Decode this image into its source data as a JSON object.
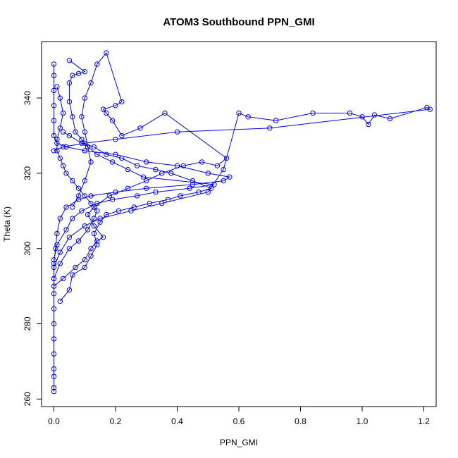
{
  "chart_data": {
    "type": "scatter",
    "title": "ATOM3 Southbound PPN_GMI",
    "xlabel": "PPN_GMI",
    "ylabel": "Theta (K)",
    "xlim": [
      -0.04,
      1.24
    ],
    "ylim": [
      258,
      355
    ],
    "x_ticks": [
      0.0,
      0.2,
      0.4,
      0.6,
      0.8,
      1.0,
      1.2
    ],
    "x_tick_labels": [
      "0.0",
      "0.2",
      "0.4",
      "0.6",
      "0.8",
      "1.0",
      "1.2"
    ],
    "y_ticks": [
      260,
      280,
      300,
      320,
      340
    ],
    "y_tick_labels": [
      "260",
      "280",
      "300",
      "320",
      "340"
    ],
    "grid": false,
    "legend": "none",
    "marker": "open-circle",
    "connected_by_lines": true,
    "series_color": "#0000ff",
    "series": [
      {
        "points": [
          [
            0.0,
            262
          ],
          [
            0.0,
            263
          ],
          [
            0.0,
            266
          ],
          [
            0.0,
            268
          ],
          [
            0.0,
            272
          ],
          [
            0.0,
            276
          ],
          [
            0.0,
            280
          ],
          [
            0.0,
            284
          ],
          [
            0.0,
            288
          ],
          [
            0.0,
            292
          ],
          [
            0.0,
            296
          ],
          [
            0.005,
            300
          ],
          [
            0.01,
            304
          ],
          [
            0.02,
            308
          ],
          [
            0.04,
            311
          ],
          [
            0.08,
            313
          ],
          [
            0.12,
            314
          ],
          [
            0.2,
            315
          ],
          [
            0.3,
            316
          ],
          [
            0.45,
            317
          ],
          [
            0.55,
            318
          ],
          [
            0.57,
            319
          ],
          [
            0.5,
            320
          ],
          [
            0.4,
            322
          ],
          [
            0.3,
            323
          ],
          [
            0.2,
            325
          ],
          [
            0.1,
            326
          ],
          [
            0.04,
            327
          ],
          [
            0.01,
            328
          ],
          [
            0.0,
            330
          ],
          [
            0.0,
            334
          ],
          [
            0.0,
            338
          ],
          [
            0.0,
            342
          ],
          [
            0.0,
            346
          ],
          [
            0.0,
            349
          ]
        ]
      },
      {
        "points": [
          [
            0.0,
            295
          ],
          [
            0.02,
            299
          ],
          [
            0.05,
            303
          ],
          [
            0.1,
            306
          ],
          [
            0.15,
            308
          ],
          [
            0.25,
            310
          ],
          [
            0.35,
            312
          ],
          [
            0.5,
            315
          ],
          [
            0.55,
            321
          ],
          [
            0.6,
            336
          ],
          [
            0.63,
            335
          ],
          [
            0.72,
            334
          ],
          [
            0.84,
            336
          ],
          [
            0.96,
            336
          ],
          [
            1.0,
            335
          ],
          [
            1.02,
            333
          ],
          [
            1.04,
            335.5
          ],
          [
            1.09,
            334.5
          ],
          [
            1.21,
            337.5
          ],
          [
            1.22,
            337
          ],
          [
            0.7,
            332
          ],
          [
            0.4,
            331
          ],
          [
            0.2,
            329
          ],
          [
            0.1,
            328
          ],
          [
            0.03,
            327
          ],
          [
            0.0,
            326
          ]
        ]
      },
      {
        "points": [
          [
            0.0,
            290
          ],
          [
            0.03,
            292
          ],
          [
            0.07,
            295
          ],
          [
            0.1,
            297
          ],
          [
            0.12,
            300
          ],
          [
            0.14,
            302
          ],
          [
            0.16,
            303
          ],
          [
            0.13,
            306
          ],
          [
            0.11,
            309
          ],
          [
            0.13,
            311
          ],
          [
            0.18,
            314
          ],
          [
            0.24,
            316
          ],
          [
            0.3,
            318
          ],
          [
            0.35,
            320
          ],
          [
            0.42,
            322
          ],
          [
            0.48,
            323
          ],
          [
            0.53,
            322
          ],
          [
            0.56,
            324
          ],
          [
            0.36,
            336
          ],
          [
            0.28,
            332
          ],
          [
            0.22,
            330
          ],
          [
            0.19,
            334
          ],
          [
            0.17,
            336
          ],
          [
            0.16,
            337
          ],
          [
            0.2,
            338
          ],
          [
            0.22,
            339
          ],
          [
            0.17,
            352
          ],
          [
            0.14,
            349
          ],
          [
            0.12,
            344
          ],
          [
            0.1,
            340
          ],
          [
            0.09,
            335
          ],
          [
            0.1,
            331
          ],
          [
            0.11,
            327
          ],
          [
            0.12,
            323
          ],
          [
            0.1,
            318
          ],
          [
            0.08,
            314
          ],
          [
            0.06,
            311
          ]
        ]
      },
      {
        "points": [
          [
            0.0,
            297
          ],
          [
            0.01,
            301
          ],
          [
            0.04,
            305
          ],
          [
            0.06,
            308
          ],
          [
            0.09,
            310
          ],
          [
            0.14,
            312
          ],
          [
            0.19,
            313
          ],
          [
            0.27,
            314
          ],
          [
            0.33,
            315
          ],
          [
            0.44,
            316
          ],
          [
            0.52,
            317
          ],
          [
            0.29,
            319
          ],
          [
            0.24,
            321
          ],
          [
            0.19,
            323
          ],
          [
            0.14,
            325
          ],
          [
            0.11,
            327
          ],
          [
            0.09,
            329
          ],
          [
            0.07,
            331
          ],
          [
            0.06,
            335
          ],
          [
            0.05,
            339
          ],
          [
            0.05,
            344
          ],
          [
            0.06,
            346
          ],
          [
            0.08,
            346.5
          ],
          [
            0.1,
            347
          ],
          [
            0.05,
            350
          ]
        ]
      },
      {
        "points": [
          [
            0.02,
            286
          ],
          [
            0.05,
            289
          ],
          [
            0.06,
            293
          ],
          [
            0.1,
            295
          ],
          [
            0.12,
            298
          ],
          [
            0.14,
            301
          ],
          [
            0.13,
            304
          ],
          [
            0.15,
            307
          ],
          [
            0.17,
            309
          ],
          [
            0.21,
            310
          ],
          [
            0.26,
            311
          ],
          [
            0.31,
            312
          ],
          [
            0.37,
            313
          ],
          [
            0.41,
            314
          ],
          [
            0.47,
            315
          ],
          [
            0.51,
            316
          ],
          [
            0.45,
            318
          ],
          [
            0.38,
            320
          ],
          [
            0.33,
            321
          ],
          [
            0.27,
            322
          ],
          [
            0.22,
            324
          ],
          [
            0.17,
            325
          ],
          [
            0.13,
            327
          ],
          [
            0.09,
            328
          ],
          [
            0.05,
            330
          ],
          [
            0.03,
            331
          ]
        ]
      },
      {
        "points": [
          [
            0.0,
            292
          ],
          [
            0.02,
            296
          ],
          [
            0.05,
            300
          ],
          [
            0.08,
            302
          ],
          [
            0.11,
            305
          ],
          [
            0.13,
            308
          ],
          [
            0.14,
            310
          ],
          [
            0.12,
            312
          ],
          [
            0.1,
            314
          ],
          [
            0.08,
            316
          ],
          [
            0.06,
            318
          ],
          [
            0.04,
            320
          ],
          [
            0.03,
            322
          ],
          [
            0.02,
            324
          ],
          [
            0.01,
            326
          ],
          [
            0.01,
            329
          ],
          [
            0.02,
            332
          ],
          [
            0.03,
            336
          ],
          [
            0.02,
            340
          ],
          [
            0.01,
            343
          ]
        ]
      }
    ]
  }
}
